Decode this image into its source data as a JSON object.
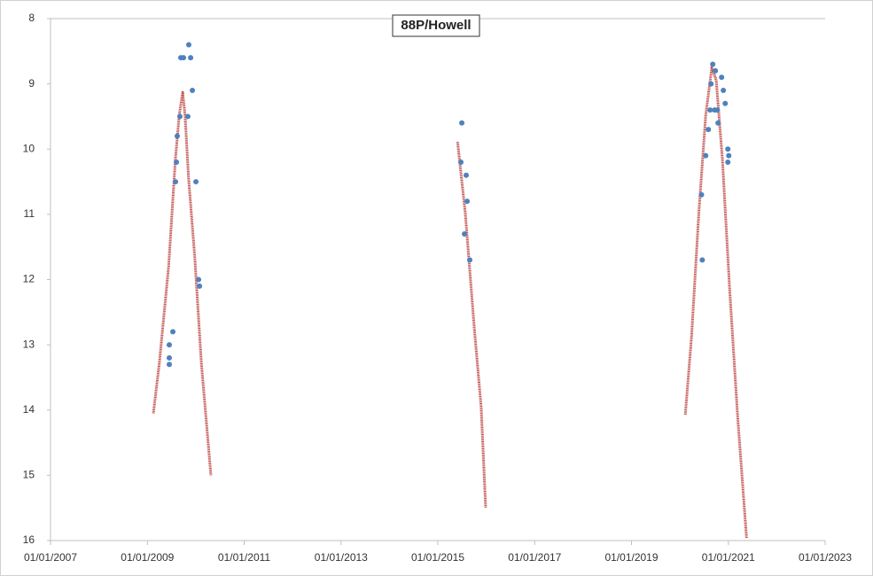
{
  "chart_data": {
    "type": "scatter",
    "title": "88P/Howell",
    "xlim": [
      "2007-01-01",
      "2023-01-01"
    ],
    "xticks": [
      {
        "value": "2007-01-01",
        "label": "01/01/2007"
      },
      {
        "value": "2009-01-01",
        "label": "01/01/2009"
      },
      {
        "value": "2011-01-01",
        "label": "01/01/2011"
      },
      {
        "value": "2013-01-01",
        "label": "01/01/2013"
      },
      {
        "value": "2015-01-01",
        "label": "01/01/2015"
      },
      {
        "value": "2017-01-01",
        "label": "01/01/2017"
      },
      {
        "value": "2019-01-01",
        "label": "01/01/2019"
      },
      {
        "value": "2021-01-01",
        "label": "01/01/2021"
      },
      {
        "value": "2023-01-01",
        "label": "01/01/2023"
      }
    ],
    "ylim": [
      16,
      8
    ],
    "yticks": [
      8,
      9,
      10,
      11,
      12,
      13,
      14,
      15,
      16
    ],
    "grid": false,
    "series": [
      {
        "type": "scatter",
        "color": "#4f81bd",
        "x": [
          "2009-06-15",
          "2009-06-15",
          "2009-06-15",
          "2009-07-12",
          "2009-08-01",
          "2009-08-08",
          "2009-08-14",
          "2009-09-03",
          "2009-09-10",
          "2009-09-30",
          "2009-11-02",
          "2009-11-09",
          "2009-11-23",
          "2009-12-06",
          "2010-01-02",
          "2010-01-22",
          "2010-01-29",
          "2015-06-24",
          "2015-07-01",
          "2015-07-21",
          "2015-08-03",
          "2015-08-10",
          "2015-08-30",
          "2020-06-12",
          "2020-06-18",
          "2020-07-14",
          "2020-08-03",
          "2020-08-16",
          "2020-08-23",
          "2020-09-05",
          "2020-09-19",
          "2020-09-25",
          "2020-10-09",
          "2020-10-15",
          "2020-11-11",
          "2020-11-24",
          "2020-12-08",
          "2020-12-28",
          "2021-01-04",
          "2020-12-28"
        ],
        "values": [
          13.0,
          13.2,
          13.3,
          12.8,
          10.5,
          10.2,
          9.8,
          9.5,
          8.6,
          8.6,
          9.5,
          8.4,
          8.6,
          9.1,
          10.5,
          12.0,
          12.1,
          10.2,
          9.6,
          11.3,
          10.4,
          10.8,
          11.7,
          10.7,
          11.7,
          10.1,
          9.7,
          9.4,
          9.0,
          8.7,
          9.4,
          8.8,
          9.4,
          9.6,
          8.9,
          9.1,
          9.3,
          10.0,
          10.1,
          10.2
        ]
      },
      {
        "type": "line",
        "color": "#c0504d",
        "x": [
          "2009-02-15",
          "2009-04-01",
          "2009-06-10",
          "2009-07-31",
          "2009-08-29",
          "2009-09-24",
          "2009-10-12",
          "2009-11-07",
          "2009-12-24",
          "2010-02-12",
          "2010-04-25",
          null,
          "2015-05-30",
          "2015-07-27",
          "2015-10-03",
          "2015-11-24",
          "2015-12-28",
          null,
          "2020-02-11",
          "2020-03-29",
          "2020-05-23",
          "2020-07-14",
          "2020-08-29",
          "2020-10-01",
          "2020-11-17",
          "2021-01-12",
          "2021-03-12",
          "2021-05-18"
        ],
        "values": [
          14.05,
          13.28,
          11.8,
          10.16,
          9.48,
          9.13,
          9.48,
          10.43,
          11.65,
          13.28,
          15.0,
          null,
          9.89,
          10.98,
          12.74,
          13.96,
          15.5,
          null,
          14.07,
          12.88,
          10.98,
          9.48,
          8.75,
          8.94,
          10.16,
          12.2,
          14.1,
          15.96
        ]
      }
    ]
  }
}
